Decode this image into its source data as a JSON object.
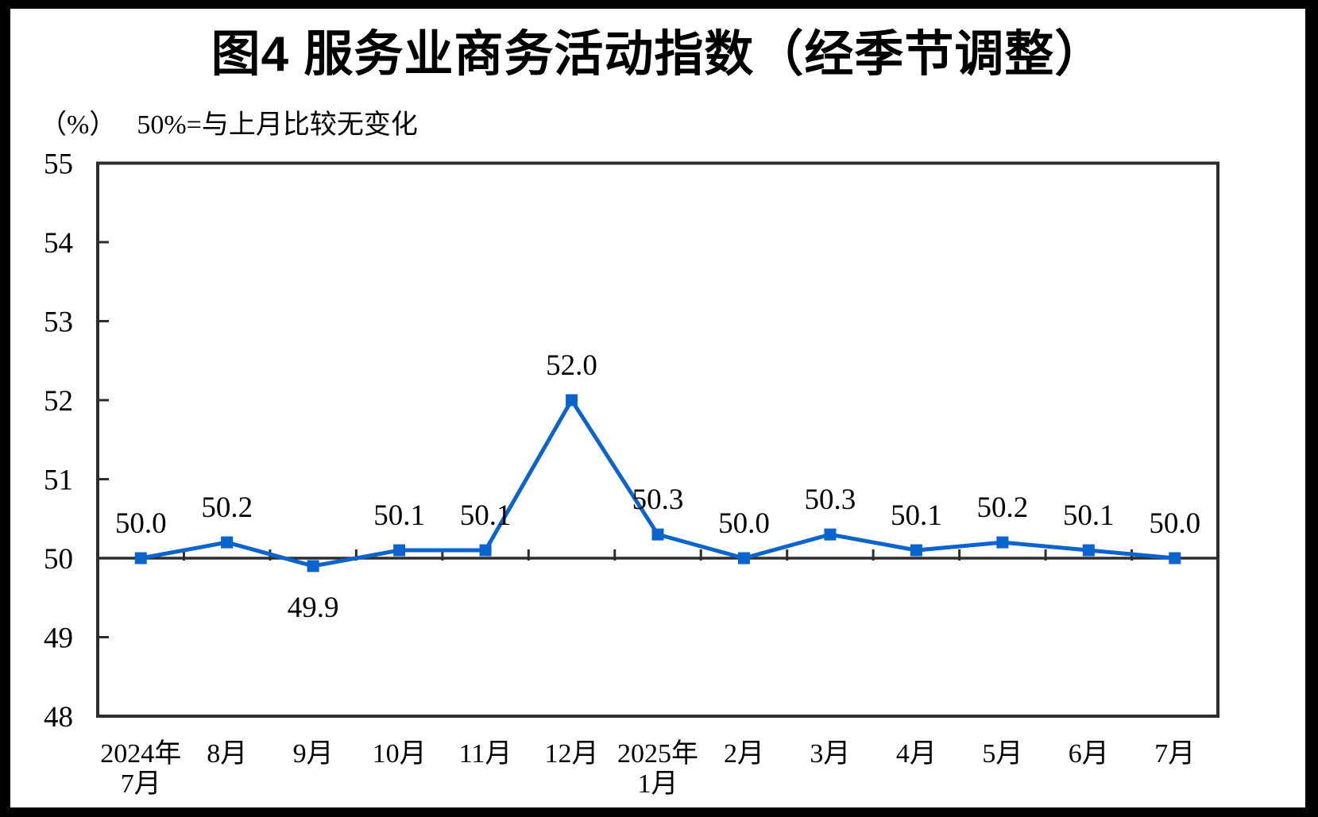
{
  "figure": {
    "title": "图4 服务业商务活动指数（经季节调整）",
    "unit_label": "（%）",
    "note": "50%=与上月比较无变化"
  },
  "chart_data": {
    "type": "line",
    "series_name": "服务业商务活动指数",
    "categories": [
      {
        "line1": "2024年",
        "line2": "7月"
      },
      {
        "line1": "8月",
        "line2": ""
      },
      {
        "line1": "9月",
        "line2": ""
      },
      {
        "line1": "10月",
        "line2": ""
      },
      {
        "line1": "11月",
        "line2": ""
      },
      {
        "line1": "12月",
        "line2": ""
      },
      {
        "line1": "2025年",
        "line2": "1月"
      },
      {
        "line1": "2月",
        "line2": ""
      },
      {
        "line1": "3月",
        "line2": ""
      },
      {
        "line1": "4月",
        "line2": ""
      },
      {
        "line1": "5月",
        "line2": ""
      },
      {
        "line1": "6月",
        "line2": ""
      },
      {
        "line1": "7月",
        "line2": ""
      }
    ],
    "values": [
      50.0,
      50.2,
      49.9,
      50.1,
      50.1,
      52.0,
      50.3,
      50.0,
      50.3,
      50.1,
      50.2,
      50.1,
      50.0
    ],
    "data_labels": [
      "50.0",
      "50.2",
      "49.9",
      "50.1",
      "50.1",
      "52.0",
      "50.3",
      "50.0",
      "50.3",
      "50.1",
      "50.2",
      "50.1",
      "50.0"
    ],
    "label_positions": [
      "above",
      "above",
      "below",
      "above",
      "above",
      "above",
      "above",
      "above",
      "above",
      "above",
      "above",
      "above",
      "above"
    ],
    "ylim": [
      48,
      55
    ],
    "yticks": [
      48,
      49,
      50,
      51,
      52,
      53,
      54,
      55
    ],
    "baseline_value": 50,
    "grid": "off",
    "legend": "none",
    "marker": "square",
    "colors": {
      "line": "#0b63ce",
      "marker": "#0b63ce",
      "axis": "#2d2d2d",
      "text": "#000000",
      "background": "#ffffff",
      "outer_border": "#000000"
    }
  }
}
